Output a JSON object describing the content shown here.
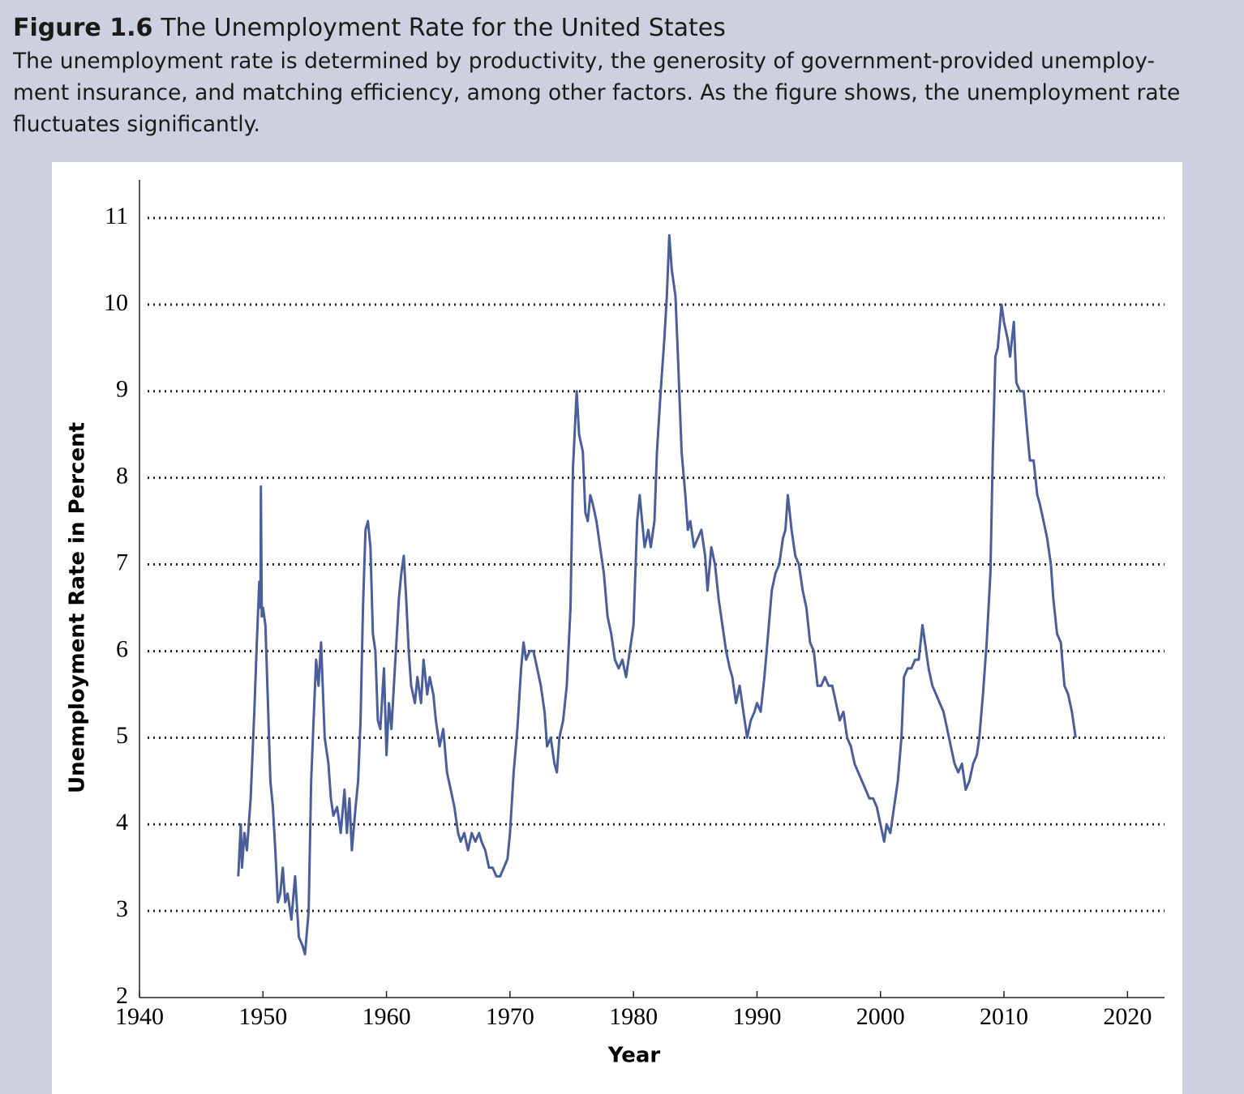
{
  "chart_data": {
    "type": "line",
    "figure_label": "Figure 1.6",
    "title": "The Unemployment Rate for the United States",
    "subtitle_lines": [
      "The unemployment rate is determined by productivity, the generosity of government-provided unemploy-",
      "ment insurance, and matching efficiency, among other factors. As the figure shows, the unemployment rate",
      "fluctuates significantly."
    ],
    "x_label": "Year",
    "y_label": "Unemployment Rate in Percent",
    "xlim": [
      1940,
      2023
    ],
    "xticks": [
      1940,
      1950,
      1960,
      1970,
      1980,
      1990,
      2000,
      2010,
      2020
    ],
    "ylim": [
      2,
      11
    ],
    "yticks": [
      2,
      3,
      4,
      5,
      6,
      7,
      8,
      9,
      10,
      11
    ],
    "grid": true,
    "color": "#4a5e9a",
    "x": [
      1948.0,
      1948.2,
      1948.3,
      1948.5,
      1948.7,
      1949.0,
      1949.3,
      1949.5,
      1949.7,
      1949.8,
      1949.83,
      1949.9,
      1950.0,
      1950.2,
      1950.4,
      1950.6,
      1950.8,
      1951.0,
      1951.2,
      1951.4,
      1951.6,
      1951.8,
      1952.0,
      1952.3,
      1952.6,
      1952.9,
      1953.2,
      1953.4,
      1953.7,
      1953.9,
      1954.1,
      1954.3,
      1954.5,
      1954.7,
      1955.0,
      1955.3,
      1955.5,
      1955.7,
      1956.0,
      1956.3,
      1956.6,
      1956.8,
      1957.0,
      1957.2,
      1957.5,
      1957.7,
      1957.9,
      1958.1,
      1958.3,
      1958.5,
      1958.7,
      1958.9,
      1959.1,
      1959.3,
      1959.5,
      1959.8,
      1960.0,
      1960.2,
      1960.4,
      1960.6,
      1960.8,
      1961.0,
      1961.2,
      1961.4,
      1961.6,
      1961.8,
      1962.0,
      1962.3,
      1962.5,
      1962.8,
      1963.0,
      1963.3,
      1963.5,
      1963.8,
      1964.0,
      1964.3,
      1964.6,
      1964.9,
      1965.2,
      1965.5,
      1965.8,
      1966.0,
      1966.3,
      1966.6,
      1966.9,
      1967.2,
      1967.5,
      1967.7,
      1968.0,
      1968.3,
      1968.6,
      1968.9,
      1969.2,
      1969.5,
      1969.8,
      1970.0,
      1970.3,
      1970.6,
      1970.9,
      1971.1,
      1971.3,
      1971.6,
      1971.9,
      1972.2,
      1972.5,
      1972.8,
      1973.0,
      1973.3,
      1973.6,
      1973.8,
      1974.0,
      1974.3,
      1974.6,
      1974.9,
      1975.1,
      1975.4,
      1975.6,
      1975.9,
      1976.1,
      1976.3,
      1976.5,
      1976.7,
      1977.0,
      1977.3,
      1977.6,
      1977.9,
      1978.2,
      1978.5,
      1978.8,
      1979.1,
      1979.4,
      1979.7,
      1980.0,
      1980.3,
      1980.5,
      1980.7,
      1980.9,
      1981.2,
      1981.4,
      1981.7,
      1981.9,
      1982.2,
      1982.5,
      1982.7,
      1982.9,
      1983.1,
      1983.4,
      1983.6,
      1983.9,
      1984.2,
      1984.4,
      1984.6,
      1984.9,
      1985.2,
      1985.5,
      1985.8,
      1986.0,
      1986.3,
      1986.6,
      1986.9,
      1987.2,
      1987.5,
      1987.8,
      1988.0,
      1988.3,
      1988.6,
      1988.9,
      1989.2,
      1989.5,
      1989.8,
      1990.0,
      1990.3,
      1990.6,
      1990.9,
      1991.2,
      1991.5,
      1991.8,
      1992.1,
      1992.3,
      1992.5,
      1992.8,
      1993.1,
      1993.4,
      1993.7,
      1994.0,
      1994.3,
      1994.6,
      1994.9,
      1995.2,
      1995.5,
      1995.8,
      1996.1,
      1996.4,
      1996.7,
      1997.0,
      1997.3,
      1997.6,
      1997.9,
      1998.2,
      1998.5,
      1998.8,
      1999.1,
      1999.4,
      1999.7,
      2000.0,
      2000.3,
      2000.5,
      2000.8,
      2001.1,
      2001.4,
      2001.7,
      2001.9,
      2002.2,
      2002.5,
      2002.8,
      2003.1,
      2003.4,
      2003.6,
      2003.9,
      2004.2,
      2004.5,
      2004.8,
      2005.1,
      2005.4,
      2005.7,
      2006.0,
      2006.3,
      2006.6,
      2006.9,
      2007.2,
      2007.5,
      2007.8,
      2008.0,
      2008.3,
      2008.6,
      2008.9,
      2009.1,
      2009.3,
      2009.5,
      2009.8,
      2010.0,
      2010.3,
      2010.5,
      2010.8,
      2011.0,
      2011.3,
      2011.6,
      2011.9,
      2012.1,
      2012.4,
      2012.7,
      2012.9,
      2013.2,
      2013.5,
      2013.8,
      2014.0,
      2014.3,
      2014.6,
      2014.9,
      2015.2,
      2015.5,
      2015.8
    ],
    "values": [
      3.4,
      4.0,
      3.5,
      3.9,
      3.7,
      4.3,
      5.3,
      6.1,
      6.8,
      6.5,
      7.9,
      6.4,
      6.5,
      6.3,
      5.4,
      4.5,
      4.2,
      3.7,
      3.1,
      3.2,
      3.5,
      3.1,
      3.2,
      2.9,
      3.4,
      2.7,
      2.6,
      2.5,
      3.0,
      4.5,
      5.2,
      5.9,
      5.6,
      6.1,
      5.0,
      4.7,
      4.3,
      4.1,
      4.2,
      3.9,
      4.4,
      3.9,
      4.3,
      3.7,
      4.2,
      4.5,
      5.2,
      6.5,
      7.4,
      7.5,
      7.2,
      6.2,
      6.0,
      5.2,
      5.1,
      5.8,
      4.8,
      5.4,
      5.1,
      5.6,
      6.1,
      6.6,
      6.9,
      7.1,
      6.6,
      6.0,
      5.6,
      5.4,
      5.7,
      5.4,
      5.9,
      5.5,
      5.7,
      5.5,
      5.2,
      4.9,
      5.1,
      4.6,
      4.4,
      4.2,
      3.9,
      3.8,
      3.9,
      3.7,
      3.9,
      3.8,
      3.9,
      3.8,
      3.7,
      3.5,
      3.5,
      3.4,
      3.4,
      3.5,
      3.6,
      3.9,
      4.6,
      5.1,
      5.8,
      6.1,
      5.9,
      6.0,
      6.0,
      5.8,
      5.6,
      5.3,
      4.9,
      5.0,
      4.7,
      4.6,
      5.0,
      5.2,
      5.6,
      6.5,
      8.1,
      9.0,
      8.5,
      8.3,
      7.6,
      7.5,
      7.8,
      7.7,
      7.5,
      7.2,
      6.9,
      6.4,
      6.2,
      5.9,
      5.8,
      5.9,
      5.7,
      6.0,
      6.3,
      7.5,
      7.8,
      7.5,
      7.2,
      7.4,
      7.2,
      7.5,
      8.3,
      9.0,
      9.6,
      10.1,
      10.8,
      10.4,
      10.1,
      9.4,
      8.3,
      7.8,
      7.4,
      7.5,
      7.2,
      7.3,
      7.4,
      7.1,
      6.7,
      7.2,
      7.0,
      6.6,
      6.3,
      6.0,
      5.8,
      5.7,
      5.4,
      5.6,
      5.3,
      5.0,
      5.2,
      5.3,
      5.4,
      5.3,
      5.7,
      6.2,
      6.7,
      6.9,
      7.0,
      7.3,
      7.4,
      7.8,
      7.4,
      7.1,
      7.0,
      6.7,
      6.5,
      6.1,
      6.0,
      5.6,
      5.6,
      5.7,
      5.6,
      5.6,
      5.4,
      5.2,
      5.3,
      5.0,
      4.9,
      4.7,
      4.6,
      4.5,
      4.4,
      4.3,
      4.3,
      4.2,
      4.0,
      3.8,
      4.0,
      3.9,
      4.2,
      4.5,
      5.0,
      5.7,
      5.8,
      5.8,
      5.9,
      5.9,
      6.3,
      6.1,
      5.8,
      5.6,
      5.5,
      5.4,
      5.3,
      5.1,
      4.9,
      4.7,
      4.6,
      4.7,
      4.4,
      4.5,
      4.7,
      4.8,
      5.0,
      5.5,
      6.1,
      6.9,
      8.3,
      9.4,
      9.5,
      10.0,
      9.8,
      9.6,
      9.4,
      9.8,
      9.1,
      9.0,
      9.0,
      8.5,
      8.2,
      8.2,
      7.8,
      7.7,
      7.5,
      7.3,
      7.0,
      6.6,
      6.2,
      6.1,
      5.6,
      5.5,
      5.3,
      5.0
    ]
  }
}
